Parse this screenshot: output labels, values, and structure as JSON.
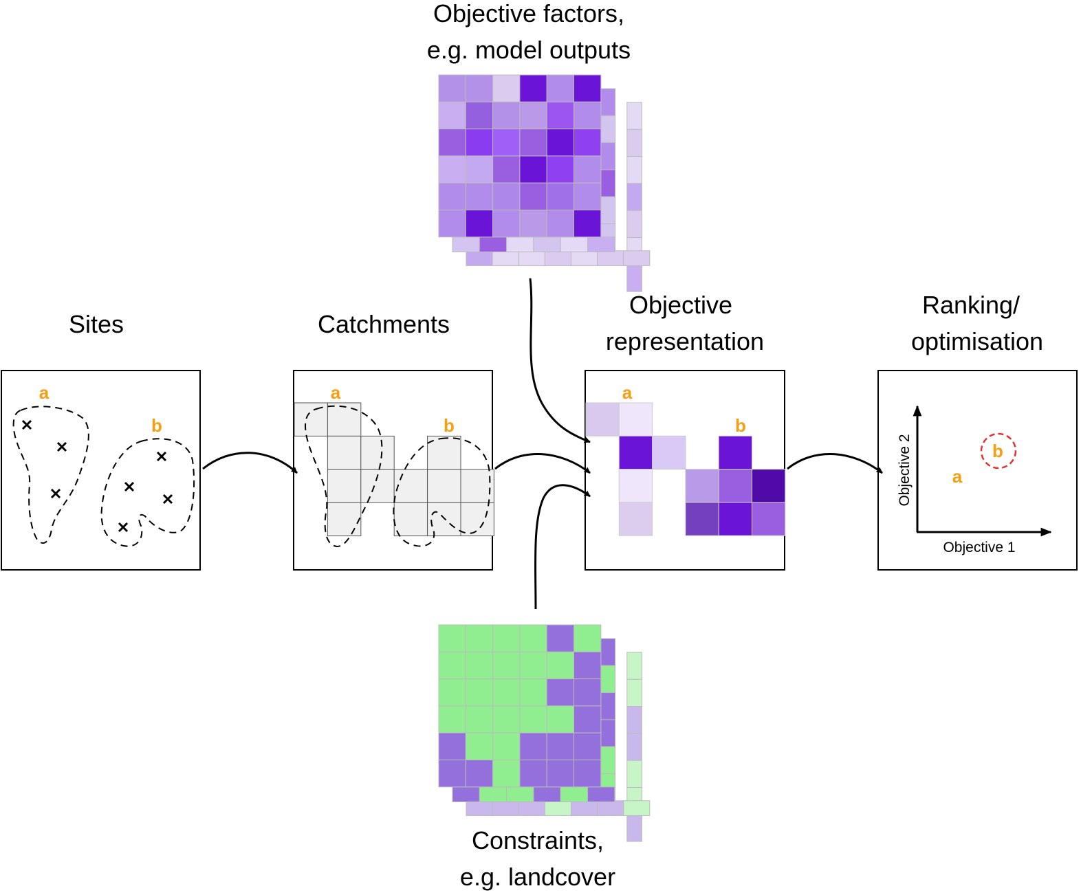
{
  "labels": {
    "top_line1": "Objective factors,",
    "top_line2": "e.g. model outputs",
    "sites": "Sites",
    "catchments": "Catchments",
    "objective_line1": "Objective",
    "objective_line2": "representation",
    "ranking_line1": "Ranking/",
    "ranking_line2": "optimisation",
    "bottom_line1": "Constraints,",
    "bottom_line2": "e.g. landcover"
  },
  "site_labels": {
    "a": "a",
    "b": "b"
  },
  "plot": {
    "y_axis": "Objective 2",
    "x_axis": "Objective 1",
    "point_a": "a",
    "point_b": "b"
  },
  "colors": {
    "accent_orange": "#f5a012",
    "highlight_red": "#e53030",
    "catchment_fill": "#f0f0f0",
    "land_green": "#90ee90",
    "land_purple": "#9370db",
    "land_green_light": "#c8f5c8",
    "land_purple_light": "#c9b8ec"
  },
  "objective_factors": [
    [
      "#b491e8",
      "#b491e8",
      "#dacbef",
      "#6a14d8",
      "#b28cea",
      "#6a14d8"
    ],
    [
      "#c9aef2",
      "#9560e0",
      "#b491e8",
      "#bb99e9",
      "#9b55f0",
      "#b28cea"
    ],
    [
      "#9a5fe0",
      "#8a3df0",
      "#a060f8",
      "#9a5fe0",
      "#6a14d8",
      "#8f40f0"
    ],
    [
      "#c9aef2",
      "#c3aaf0",
      "#9a5fe0",
      "#6a14d8",
      "#8f40f0",
      "#b28cea"
    ],
    [
      "#b28cea",
      "#b28cea",
      "#ad88ea",
      "#9a5fe0",
      "#a070e8",
      "#b28cea"
    ],
    [
      "#b28cea",
      "#6a14d8",
      "#b28cea",
      "#bb99e9",
      "#b28cea",
      "#6a14d8"
    ]
  ],
  "objective_factors_layer2_right": [
    "#b28cea",
    "#d4c4f0",
    "#b28cea",
    "#9a5fe0",
    "#d4c4f0",
    "#d4c4f0"
  ],
  "objective_factors_layer2_bottom": [
    "#d4c4f0",
    "#9a5fe0",
    "#e4daf5",
    "#d4c4f0",
    "#e4daf5",
    "#c9aef2"
  ],
  "objective_factors_layer3_right": [
    "#e4daf5",
    "#dacbef",
    "#e4daf5",
    "#c3aaf0",
    "#dacbef",
    "#e4daf5",
    "#c9aef2"
  ],
  "objective_factors_layer3_bottom": [
    "#c3aaf0",
    "#e4daf5",
    "#e4daf5",
    "#dacbef",
    "#e4daf5",
    "#dacbef",
    "#dacbef"
  ],
  "landcover": [
    [
      "g",
      "g",
      "g",
      "g",
      "p",
      "g"
    ],
    [
      "g",
      "g",
      "g",
      "g",
      "g",
      "p"
    ],
    [
      "g",
      "g",
      "g",
      "g",
      "p",
      "p"
    ],
    [
      "g",
      "g",
      "g",
      "g",
      "g",
      "p"
    ],
    [
      "p",
      "g",
      "g",
      "p",
      "p",
      "p"
    ],
    [
      "p",
      "p",
      "g",
      "p",
      "p",
      "p"
    ]
  ],
  "landcover_layer2_right": [
    "p",
    "g",
    "p",
    "p",
    "g",
    "g"
  ],
  "landcover_layer2_bottom": [
    "p",
    "g",
    "g",
    "p",
    "g",
    "p"
  ],
  "landcover_layer3_right": [
    "g",
    "g",
    "p",
    "p",
    "g",
    "g",
    "p"
  ],
  "landcover_layer3_bottom": [
    "p",
    "p",
    "p",
    "g",
    "p",
    "p",
    "g"
  ],
  "representation_cells": [
    {
      "col": 0,
      "row": 0,
      "color": "#d9c9ef"
    },
    {
      "col": 1,
      "row": 0,
      "color": "#efe6fb"
    },
    {
      "col": 1,
      "row": 1,
      "color": "#6a14d8"
    },
    {
      "col": 2,
      "row": 1,
      "color": "#d9c9f7"
    },
    {
      "col": 4,
      "row": 1,
      "color": "#6a14d8"
    },
    {
      "col": 1,
      "row": 2,
      "color": "#efe6fb"
    },
    {
      "col": 3,
      "row": 2,
      "color": "#b89ae8"
    },
    {
      "col": 4,
      "row": 2,
      "color": "#9a5fe0"
    },
    {
      "col": 5,
      "row": 2,
      "color": "#4f0aa8"
    },
    {
      "col": 1,
      "row": 3,
      "color": "#dccdef"
    },
    {
      "col": 3,
      "row": 3,
      "color": "#7540c0"
    },
    {
      "col": 4,
      "row": 3,
      "color": "#6a14d8"
    },
    {
      "col": 5,
      "row": 3,
      "color": "#9a5fe0"
    }
  ]
}
